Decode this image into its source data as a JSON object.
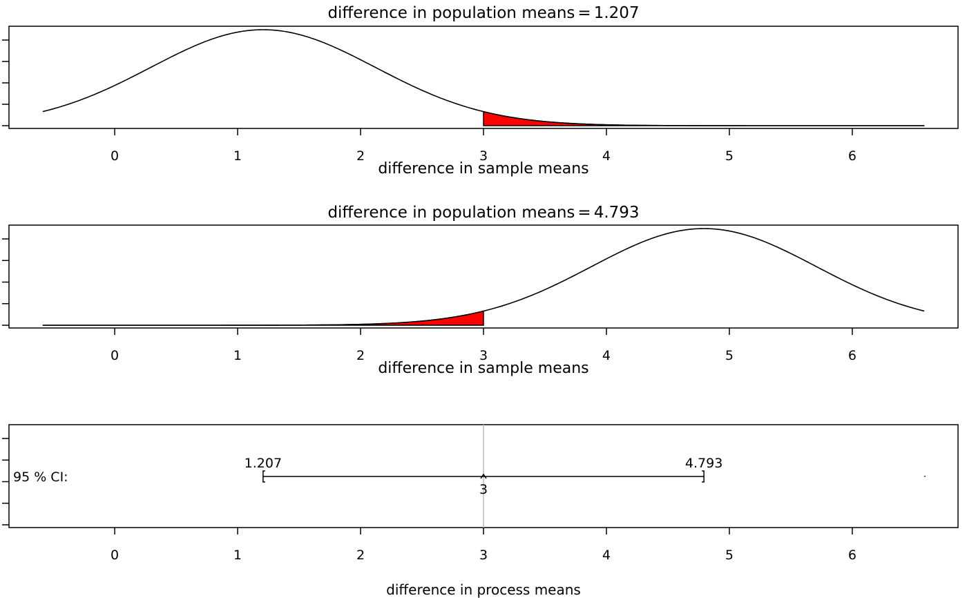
{
  "chart_data": [
    {
      "type": "area",
      "title_text": "difference in population means",
      "title_eq": "=",
      "title_value": "1.207",
      "mean": 1.207,
      "sd": 0.915,
      "x_range": [
        -0.586,
        6.586
      ],
      "xlim": [
        -0.86,
        6.86
      ],
      "xticks": [
        "0",
        "1",
        "2",
        "3",
        "4",
        "5",
        "6"
      ],
      "xlabel": "difference in sample means",
      "shade_from": 3,
      "shade_to": 6.586,
      "shade_color": "#ff0000",
      "y_ticks_count": 5
    },
    {
      "type": "area",
      "title_text": "difference in population means",
      "title_eq": "=",
      "title_value": "4.793",
      "mean": 4.793,
      "sd": 0.915,
      "x_range": [
        -0.586,
        6.586
      ],
      "xlim": [
        -0.86,
        6.86
      ],
      "xticks": [
        "0",
        "1",
        "2",
        "3",
        "4",
        "5",
        "6"
      ],
      "xlabel": "difference in sample means",
      "shade_from": -0.586,
      "shade_to": 3,
      "shade_color": "#ff0000",
      "y_ticks_count": 5
    },
    {
      "type": "interval",
      "ci_label": "95 % CI:",
      "lower": 1.207,
      "upper": 4.793,
      "point": 3,
      "lower_label": "1.207",
      "upper_label": "4.793",
      "point_label": "3",
      "reference_line": 3,
      "reference_color": "#bdbdbd",
      "xlim": [
        -0.86,
        6.86
      ],
      "xticks": [
        "0",
        "1",
        "2",
        "3",
        "4",
        "5",
        "6"
      ],
      "xlabel": "difference in process means",
      "y_ticks_count": 5
    }
  ]
}
